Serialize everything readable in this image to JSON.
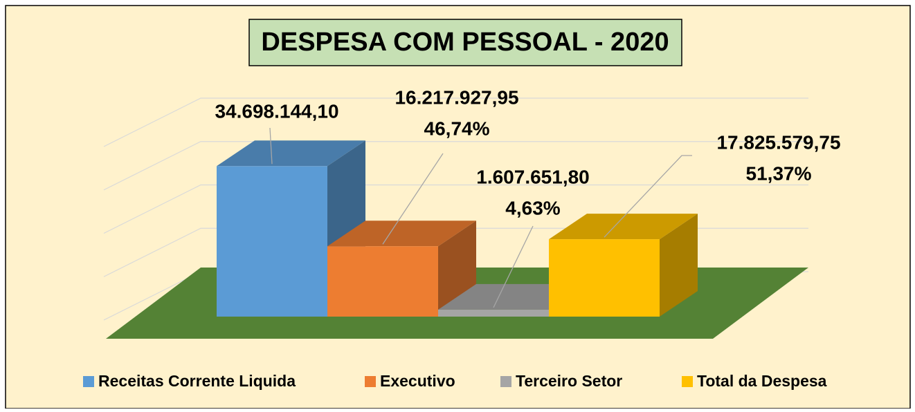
{
  "chart_data": {
    "type": "bar3d",
    "title": "DESPESA COM PESSOAL - 2020",
    "categories": [
      "Receitas Corrente Liquida",
      "Executivo",
      "Terceiro Setor",
      "Total da Despesa"
    ],
    "values": [
      34698144.1,
      16217927.95,
      1607651.8,
      17825579.75
    ],
    "value_labels": [
      "34.698.144,10",
      "16.217.927,95",
      "1.607.651,80",
      "17.825.579,75"
    ],
    "shares": [
      null,
      46.74,
      4.63,
      51.37
    ],
    "share_labels": [
      null,
      "46,74%",
      "4,63%",
      "51,37%"
    ],
    "colors": [
      "#5b9bd5",
      "#ed7d31",
      "#a5a5a5",
      "#ffc000"
    ],
    "ylim": [
      0,
      40000000
    ],
    "yticks": [
      0,
      10000000,
      20000000,
      30000000,
      40000000
    ],
    "grid": true,
    "legend": "bottom"
  }
}
